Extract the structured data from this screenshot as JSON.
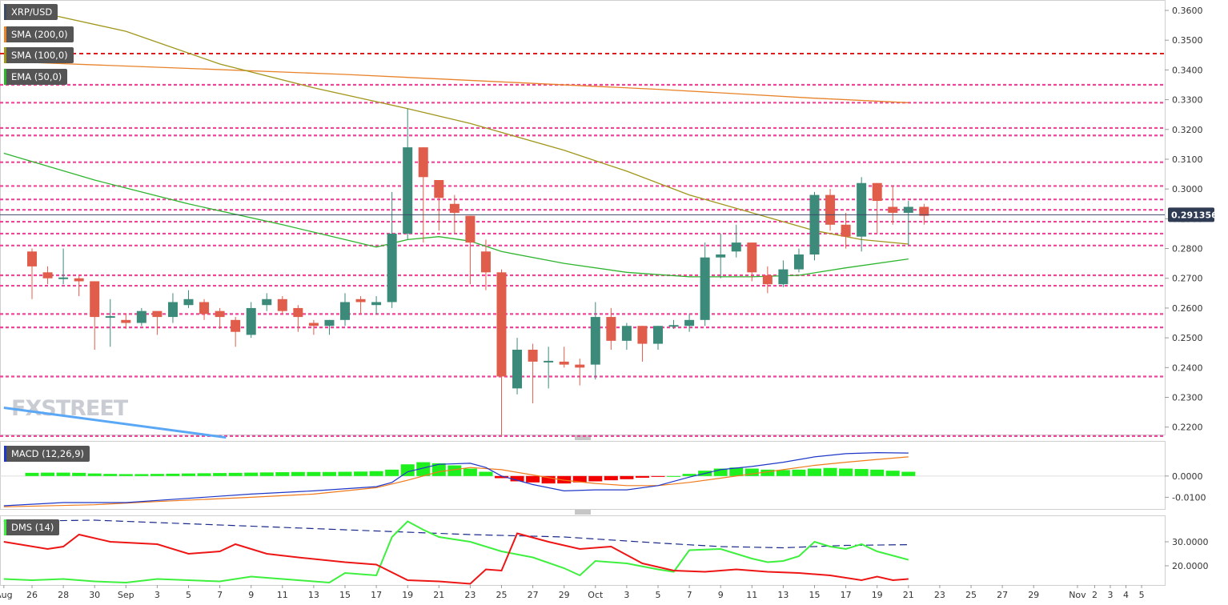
{
  "symbol": "XRP/USD",
  "indicators": [
    {
      "label": "SMA (200,0)",
      "color": "#e8832a"
    },
    {
      "label": "SMA (100,0)",
      "color": "#a0961a"
    },
    {
      "label": "EMA (50,0)",
      "color": "#2db52d"
    }
  ],
  "current_price": "0.291356",
  "watermark": "FXSTREET",
  "chart_data": [
    {
      "type": "candlestick",
      "title": "XRP/USD",
      "ylim": [
        0.2175,
        0.3635
      ],
      "y_ticks": [
        "0.3600",
        "0.3500",
        "0.3400",
        "0.3300",
        "0.3200",
        "0.3100",
        "0.3000",
        "0.2900",
        "0.2800",
        "0.2700",
        "0.2600",
        "0.2500",
        "0.2400",
        "0.2300",
        "0.2200"
      ],
      "x_ticks": [
        {
          "label": "Aug",
          "i": -1.8
        },
        {
          "label": "26",
          "i": 0
        },
        {
          "label": "28",
          "i": 2
        },
        {
          "label": "30",
          "i": 4
        },
        {
          "label": "Sep",
          "i": 6
        },
        {
          "label": "3",
          "i": 8
        },
        {
          "label": "5",
          "i": 10
        },
        {
          "label": "7",
          "i": 12
        },
        {
          "label": "9",
          "i": 14
        },
        {
          "label": "11",
          "i": 16
        },
        {
          "label": "13",
          "i": 18
        },
        {
          "label": "15",
          "i": 20
        },
        {
          "label": "17",
          "i": 22
        },
        {
          "label": "19",
          "i": 24
        },
        {
          "label": "21",
          "i": 26
        },
        {
          "label": "23",
          "i": 28
        },
        {
          "label": "25",
          "i": 30
        },
        {
          "label": "27",
          "i": 32
        },
        {
          "label": "29",
          "i": 34
        },
        {
          "label": "Oct",
          "i": 36
        },
        {
          "label": "3",
          "i": 38
        },
        {
          "label": "5",
          "i": 40
        },
        {
          "label": "7",
          "i": 42
        },
        {
          "label": "9",
          "i": 44
        },
        {
          "label": "11",
          "i": 46
        },
        {
          "label": "13",
          "i": 48
        },
        {
          "label": "15",
          "i": 50
        },
        {
          "label": "17",
          "i": 52
        },
        {
          "label": "19",
          "i": 54
        },
        {
          "label": "21",
          "i": 56
        },
        {
          "label": "23",
          "i": 58
        },
        {
          "label": "25",
          "i": 60
        },
        {
          "label": "27",
          "i": 62
        },
        {
          "label": "29",
          "i": 64
        },
        {
          "label": "Nov",
          "i": 66.8
        },
        {
          "label": "2",
          "i": 67.9
        },
        {
          "label": "3",
          "i": 68.9
        },
        {
          "label": "4",
          "i": 69.9
        },
        {
          "label": "5",
          "i": 70.9
        }
      ],
      "candles": [
        [
          0.279,
          0.28,
          0.263,
          0.274
        ],
        [
          0.272,
          0.274,
          0.268,
          0.27
        ],
        [
          0.27,
          0.28,
          0.268,
          0.27
        ],
        [
          0.27,
          0.271,
          0.264,
          0.269
        ],
        [
          0.269,
          0.269,
          0.246,
          0.257
        ],
        [
          0.257,
          0.263,
          0.247,
          0.257
        ],
        [
          0.256,
          0.258,
          0.253,
          0.255
        ],
        [
          0.255,
          0.26,
          0.254,
          0.259
        ],
        [
          0.259,
          0.259,
          0.251,
          0.257
        ],
        [
          0.257,
          0.265,
          0.255,
          0.262
        ],
        [
          0.261,
          0.266,
          0.26,
          0.263
        ],
        [
          0.262,
          0.263,
          0.256,
          0.258
        ],
        [
          0.259,
          0.26,
          0.253,
          0.257
        ],
        [
          0.256,
          0.257,
          0.247,
          0.252
        ],
        [
          0.251,
          0.262,
          0.25,
          0.26
        ],
        [
          0.261,
          0.265,
          0.259,
          0.263
        ],
        [
          0.263,
          0.264,
          0.258,
          0.259
        ],
        [
          0.26,
          0.261,
          0.252,
          0.257
        ],
        [
          0.255,
          0.256,
          0.251,
          0.254
        ],
        [
          0.254,
          0.256,
          0.251,
          0.256
        ],
        [
          0.256,
          0.265,
          0.254,
          0.262
        ],
        [
          0.263,
          0.264,
          0.258,
          0.262
        ],
        [
          0.261,
          0.264,
          0.258,
          0.262
        ],
        [
          0.262,
          0.299,
          0.26,
          0.285
        ],
        [
          0.285,
          0.327,
          0.283,
          0.314
        ],
        [
          0.314,
          0.314,
          0.282,
          0.304
        ],
        [
          0.303,
          0.303,
          0.286,
          0.297
        ],
        [
          0.295,
          0.298,
          0.285,
          0.292
        ],
        [
          0.291,
          0.291,
          0.268,
          0.282
        ],
        [
          0.279,
          0.283,
          0.266,
          0.272
        ],
        [
          0.272,
          0.273,
          0.217,
          0.237
        ],
        [
          0.233,
          0.25,
          0.231,
          0.246
        ],
        [
          0.246,
          0.248,
          0.228,
          0.242
        ],
        [
          0.242,
          0.247,
          0.233,
          0.242
        ],
        [
          0.242,
          0.247,
          0.24,
          0.241
        ],
        [
          0.241,
          0.243,
          0.234,
          0.24
        ],
        [
          0.241,
          0.262,
          0.236,
          0.257
        ],
        [
          0.257,
          0.26,
          0.246,
          0.249
        ],
        [
          0.249,
          0.255,
          0.246,
          0.254
        ],
        [
          0.254,
          0.254,
          0.242,
          0.248
        ],
        [
          0.248,
          0.254,
          0.246,
          0.254
        ],
        [
          0.254,
          0.256,
          0.253,
          0.254
        ],
        [
          0.254,
          0.258,
          0.252,
          0.256
        ],
        [
          0.256,
          0.282,
          0.254,
          0.277
        ],
        [
          0.277,
          0.285,
          0.27,
          0.278
        ],
        [
          0.279,
          0.288,
          0.277,
          0.282
        ],
        [
          0.282,
          0.282,
          0.269,
          0.272
        ],
        [
          0.271,
          0.274,
          0.265,
          0.268
        ],
        [
          0.268,
          0.276,
          0.267,
          0.273
        ],
        [
          0.273,
          0.28,
          0.272,
          0.278
        ],
        [
          0.278,
          0.299,
          0.276,
          0.298
        ],
        [
          0.298,
          0.3,
          0.286,
          0.288
        ],
        [
          0.288,
          0.292,
          0.28,
          0.284
        ],
        [
          0.284,
          0.304,
          0.279,
          0.302
        ],
        [
          0.302,
          0.302,
          0.285,
          0.296
        ],
        [
          0.294,
          0.301,
          0.288,
          0.292
        ],
        [
          0.292,
          0.296,
          0.281,
          0.294
        ],
        [
          0.294,
          0.295,
          0.288,
          0.291
        ]
      ],
      "hlines_red": [
        0.3455
      ],
      "hlines_pink": [
        0.335,
        0.329,
        0.3205,
        0.318,
        0.309,
        0.301,
        0.2965,
        0.293,
        0.289,
        0.285,
        0.281,
        0.271,
        0.2675,
        0.258,
        0.2535,
        0.237,
        0.217
      ],
      "sma200": [
        [
          0,
          0.3425
        ],
        [
          10,
          0.3405
        ],
        [
          20,
          0.3385
        ],
        [
          30,
          0.336
        ],
        [
          40,
          0.3335
        ],
        [
          50,
          0.3305
        ],
        [
          56,
          0.329
        ]
      ],
      "sma100": [
        [
          -1.8,
          0.362
        ],
        [
          6,
          0.353
        ],
        [
          12,
          0.342
        ],
        [
          18,
          0.334
        ],
        [
          24,
          0.327
        ],
        [
          28,
          0.322
        ],
        [
          34,
          0.313
        ],
        [
          38,
          0.306
        ],
        [
          42,
          0.298
        ],
        [
          46,
          0.292
        ],
        [
          50,
          0.286
        ],
        [
          53,
          0.283
        ],
        [
          56,
          0.2815
        ]
      ],
      "ema50": [
        [
          -1.8,
          0.312
        ],
        [
          4,
          0.303
        ],
        [
          10,
          0.295
        ],
        [
          16,
          0.288
        ],
        [
          20,
          0.283
        ],
        [
          22,
          0.2805
        ],
        [
          24,
          0.283
        ],
        [
          26,
          0.284
        ],
        [
          28,
          0.2825
        ],
        [
          30,
          0.279
        ],
        [
          34,
          0.275
        ],
        [
          38,
          0.272
        ],
        [
          42,
          0.2705
        ],
        [
          46,
          0.2705
        ],
        [
          49,
          0.271
        ],
        [
          52,
          0.2735
        ],
        [
          56,
          0.2765
        ]
      ],
      "trendline": [
        [
          -1.8,
          0.2265
        ],
        [
          12.4,
          0.2165
        ]
      ]
    },
    {
      "type": "macd",
      "title": "MACD (12,26,9)",
      "ylim": [
        -0.0155,
        0.0165
      ],
      "y_ticks": [
        "0.0000",
        "-0.0100"
      ],
      "histogram": [
        0.0015,
        0.0016,
        0.0016,
        0.0015,
        0.0012,
        0.001,
        0.0009,
        0.0009,
        0.001,
        0.0011,
        0.0012,
        0.0013,
        0.0014,
        0.0015,
        0.0016,
        0.0017,
        0.0018,
        0.0019,
        0.0019,
        0.0019,
        0.002,
        0.0021,
        0.0023,
        0.003,
        0.0055,
        0.0065,
        0.006,
        0.005,
        0.0035,
        0.002,
        -0.001,
        -0.0025,
        -0.003,
        -0.0035,
        -0.0035,
        -0.003,
        -0.0025,
        -0.002,
        -0.0015,
        -0.0008,
        -0.0004,
        0.0,
        0.001,
        0.0025,
        0.0035,
        0.004,
        0.0035,
        0.003,
        0.0028,
        0.003,
        0.0035,
        0.0038,
        0.0035,
        0.0033,
        0.003,
        0.0025,
        0.002
      ],
      "macd_line": [
        [
          -1.8,
          -0.014
        ],
        [
          2,
          -0.0125
        ],
        [
          6,
          -0.0125
        ],
        [
          10,
          -0.0105
        ],
        [
          14,
          -0.0085
        ],
        [
          18,
          -0.007
        ],
        [
          22,
          -0.005
        ],
        [
          23,
          -0.003
        ],
        [
          24,
          0.002
        ],
        [
          26,
          0.0055
        ],
        [
          28,
          0.006
        ],
        [
          29,
          0.004
        ],
        [
          30,
          0.0
        ],
        [
          32,
          -0.004
        ],
        [
          34,
          -0.007
        ],
        [
          36,
          -0.0065
        ],
        [
          38,
          -0.0065
        ],
        [
          40,
          -0.0045
        ],
        [
          42,
          -0.0005
        ],
        [
          44,
          0.003
        ],
        [
          46,
          0.0045
        ],
        [
          48,
          0.0065
        ],
        [
          50,
          0.009
        ],
        [
          52,
          0.0105
        ],
        [
          54,
          0.011
        ],
        [
          56,
          0.0108
        ]
      ],
      "signal_line": [
        [
          -1.8,
          -0.0145
        ],
        [
          4,
          -0.0135
        ],
        [
          8,
          -0.012
        ],
        [
          14,
          -0.01
        ],
        [
          18,
          -0.0085
        ],
        [
          22,
          -0.0055
        ],
        [
          24,
          -0.002
        ],
        [
          26,
          0.002
        ],
        [
          28,
          0.004
        ],
        [
          30,
          0.003
        ],
        [
          32,
          0.0005
        ],
        [
          34,
          -0.002
        ],
        [
          36,
          -0.0035
        ],
        [
          38,
          -0.0045
        ],
        [
          40,
          -0.0045
        ],
        [
          42,
          -0.003
        ],
        [
          44,
          -0.001
        ],
        [
          46,
          0.001
        ],
        [
          48,
          0.003
        ],
        [
          50,
          0.005
        ],
        [
          52,
          0.0065
        ],
        [
          54,
          0.0078
        ],
        [
          56,
          0.009
        ]
      ]
    },
    {
      "type": "dms",
      "title": "DMS (14)",
      "ylim": [
        12,
        41
      ],
      "y_ticks": [
        "30.0000",
        "20.0000"
      ],
      "adx": [
        [
          -1.8,
          38.5
        ],
        [
          4,
          39.0
        ],
        [
          10,
          37.5
        ],
        [
          16,
          36.0
        ],
        [
          22,
          34.5
        ],
        [
          28,
          33.0
        ],
        [
          34,
          32.0
        ],
        [
          40,
          29.5
        ],
        [
          44,
          28.0
        ],
        [
          48,
          27.5
        ],
        [
          52,
          28.5
        ],
        [
          56,
          28.8
        ]
      ],
      "plus_di": [
        [
          -1.8,
          14.5
        ],
        [
          0,
          14.0
        ],
        [
          2,
          14.5
        ],
        [
          4,
          13.5
        ],
        [
          6,
          13.0
        ],
        [
          8,
          14.5
        ],
        [
          10,
          14.0
        ],
        [
          12,
          13.5
        ],
        [
          14,
          15.5
        ],
        [
          16,
          14.5
        ],
        [
          18,
          13.5
        ],
        [
          19,
          13.0
        ],
        [
          20,
          17.0
        ],
        [
          22,
          16.0
        ],
        [
          23,
          32.0
        ],
        [
          24,
          38.5
        ],
        [
          25,
          35.0
        ],
        [
          26,
          32.0
        ],
        [
          28,
          30.0
        ],
        [
          30,
          26.0
        ],
        [
          32,
          23.5
        ],
        [
          34,
          19.0
        ],
        [
          35,
          16.0
        ],
        [
          36,
          22.0
        ],
        [
          38,
          21.0
        ],
        [
          40,
          18.5
        ],
        [
          41,
          17.5
        ],
        [
          42,
          26.5
        ],
        [
          44,
          27.0
        ],
        [
          46,
          23.0
        ],
        [
          47,
          21.5
        ],
        [
          48,
          22.0
        ],
        [
          49,
          24.0
        ],
        [
          50,
          30.0
        ],
        [
          51,
          28.0
        ],
        [
          52,
          27.0
        ],
        [
          53,
          29.0
        ],
        [
          54,
          26.0
        ],
        [
          56,
          22.5
        ]
      ],
      "minus_di": [
        [
          -1.8,
          30.0
        ],
        [
          1,
          27.0
        ],
        [
          2,
          28.0
        ],
        [
          3,
          33.0
        ],
        [
          5,
          30.0
        ],
        [
          8,
          29.0
        ],
        [
          10,
          25.0
        ],
        [
          12,
          26.0
        ],
        [
          13,
          29.0
        ],
        [
          15,
          25.0
        ],
        [
          17,
          23.5
        ],
        [
          20,
          21.5
        ],
        [
          22,
          20.5
        ],
        [
          24,
          14.0
        ],
        [
          26,
          13.5
        ],
        [
          28,
          12.5
        ],
        [
          29,
          18.5
        ],
        [
          30,
          18.0
        ],
        [
          31,
          33.5
        ],
        [
          33,
          30.0
        ],
        [
          35,
          27.0
        ],
        [
          37,
          28.0
        ],
        [
          39,
          21.0
        ],
        [
          41,
          18.0
        ],
        [
          43,
          17.5
        ],
        [
          45,
          18.5
        ],
        [
          47,
          17.5
        ],
        [
          49,
          17.0
        ],
        [
          51,
          16.0
        ],
        [
          53,
          14.0
        ],
        [
          54,
          15.5
        ],
        [
          55,
          14.0
        ],
        [
          56,
          14.5
        ]
      ]
    }
  ]
}
